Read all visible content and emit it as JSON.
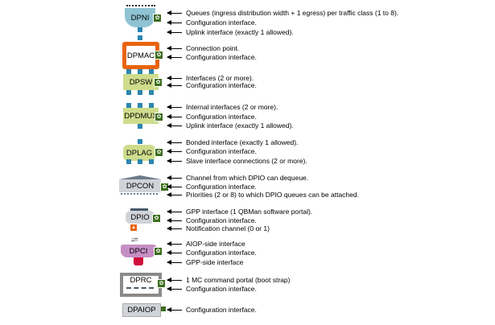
{
  "objects": [
    {
      "name": "DPNI",
      "notes": [
        "Queues (ingress distribution width + 1 egress) per traffic class (1 to 8).",
        "Configuration interface.",
        "Uplink interface (exactly 1 allowed)."
      ]
    },
    {
      "name": "DPMAC",
      "notes": [
        "Connection point.",
        "Configuration interface."
      ]
    },
    {
      "name": "DPSW",
      "notes": [
        "Interfaces (2 or more).",
        "Configuration interface."
      ]
    },
    {
      "name": "DPDMUX",
      "notes": [
        "Internal interfaces (2 or more).",
        "Configuration interface.",
        "Uplink interface (exactly 1 allowed)."
      ]
    },
    {
      "name": "DPLAG",
      "notes": [
        "Bonded interface (exactly 1 allowed).",
        "Configuration interface.",
        "Slave interface connections (2 or more)."
      ]
    },
    {
      "name": "DPCON",
      "notes": [
        "Channel from which DPIO can dequeue.",
        "Configuration interface.",
        "Priorities (2 or 8) to which DPIO queues can be attached."
      ]
    },
    {
      "name": "DPIO",
      "notes": [
        "GPP interface (1 QBMan software portal).",
        "Configuration interface.",
        "Notification channel (0 or 1)"
      ]
    },
    {
      "name": "DPCI",
      "notes": [
        "AIOP-side interface",
        "Configuration interface.",
        "GPP-side interface"
      ]
    },
    {
      "name": "DPRC",
      "notes": [
        "1 MC command portal (boot strap)",
        "Configuration interface."
      ]
    },
    {
      "name": "DPAIOP",
      "notes": [
        "Configuration interface."
      ]
    }
  ],
  "colors": {
    "dpni": "#8fc3d3",
    "dpmac": "#e8640e",
    "dpsw": "#cfdc8c",
    "dpcon": "#d0d3d8",
    "dpci": "#c68fc4",
    "port": "#2a86b0",
    "gear": "#3b6e1e"
  }
}
